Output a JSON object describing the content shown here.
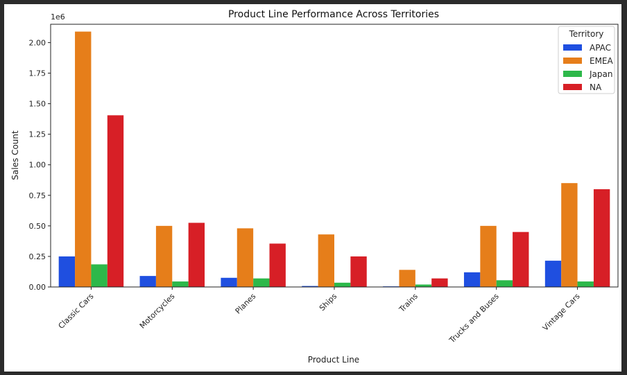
{
  "colors": {
    "APAC": "#1f4fe0",
    "EMEA": "#e67e1a",
    "Japan": "#2db84a",
    "NA": "#d71f26"
  },
  "chart_data": {
    "type": "bar",
    "title": "Product Line Performance Across Territories",
    "xlabel": "Product Line",
    "ylabel": "Sales Count",
    "y_multiplier_label": "1e6",
    "ylim": [
      0,
      2.15
    ],
    "yticks": [
      "0.00",
      "0.25",
      "0.50",
      "0.75",
      "1.00",
      "1.25",
      "1.50",
      "1.75",
      "2.00"
    ],
    "ytick_values": [
      0,
      0.25,
      0.5,
      0.75,
      1.0,
      1.25,
      1.5,
      1.75,
      2.0
    ],
    "categories": [
      "Classic Cars",
      "Motorcycles",
      "Planes",
      "Ships",
      "Trains",
      "Trucks and Buses",
      "Vintage Cars"
    ],
    "legend_title": "Territory",
    "legend_position": "top-right",
    "grid": false,
    "series": [
      {
        "name": "APAC",
        "values": [
          0.25,
          0.09,
          0.075,
          0.008,
          0.005,
          0.12,
          0.215
        ]
      },
      {
        "name": "EMEA",
        "values": [
          2.09,
          0.5,
          0.48,
          0.43,
          0.14,
          0.5,
          0.85
        ]
      },
      {
        "name": "Japan",
        "values": [
          0.185,
          0.045,
          0.07,
          0.035,
          0.02,
          0.055,
          0.045
        ]
      },
      {
        "name": "NA",
        "values": [
          1.405,
          0.525,
          0.355,
          0.25,
          0.07,
          0.45,
          0.8
        ]
      }
    ]
  }
}
